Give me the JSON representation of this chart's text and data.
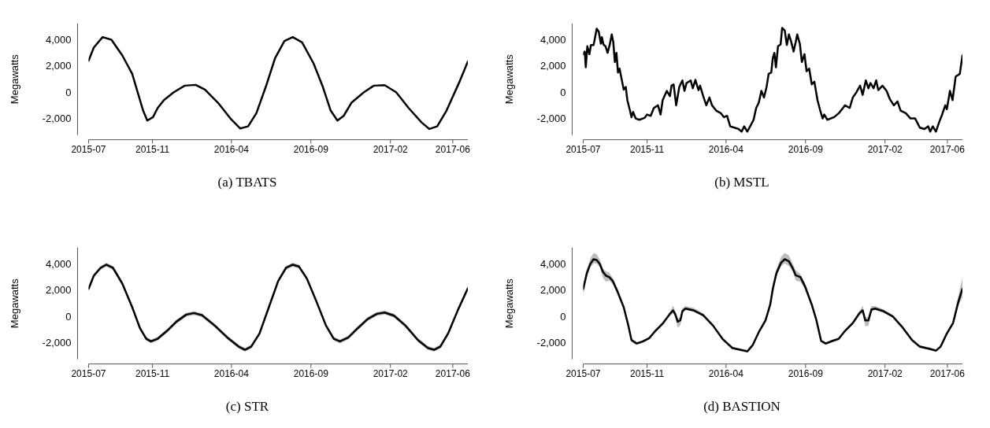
{
  "chart_data": [
    {
      "type": "line",
      "title": "(a) TBATS",
      "ylabel": "Megawatts",
      "marker": "none",
      "line_style": "solid",
      "xlim": [
        "2015-07-01",
        "2017-06-30"
      ],
      "xticks": [
        "2015-07",
        "2015-11",
        "2016-04",
        "2016-09",
        "2017-02",
        "2017-06"
      ],
      "ylim": [
        -3200,
        5300
      ],
      "yticks": [
        {
          "value": -2000,
          "label": "-2,000"
        },
        {
          "value": 0,
          "label": "0"
        },
        {
          "value": 2000,
          "label": "2,000"
        },
        {
          "value": 4000,
          "label": "4,000"
        }
      ],
      "x": [
        "2015-07-01",
        "2015-07-11",
        "2015-07-28",
        "2015-08-14",
        "2015-09-04",
        "2015-09-23",
        "2015-10-05",
        "2015-10-14",
        "2015-10-22",
        "2015-11-02",
        "2015-11-11",
        "2015-11-23",
        "2015-12-12",
        "2016-01-02",
        "2016-01-23",
        "2016-02-10",
        "2016-03-06",
        "2016-03-30",
        "2016-04-18",
        "2016-05-03",
        "2016-05-19",
        "2016-06-06",
        "2016-06-24",
        "2016-07-12",
        "2016-07-28",
        "2016-08-15",
        "2016-09-06",
        "2016-09-24",
        "2016-10-09",
        "2016-10-22",
        "2016-11-03",
        "2016-11-18",
        "2016-12-12",
        "2016-12-31",
        "2017-01-21",
        "2017-02-12",
        "2017-03-08",
        "2017-04-02",
        "2017-04-17",
        "2017-05-02",
        "2017-05-20",
        "2017-06-14",
        "2017-06-30"
      ],
      "series": [
        {
          "color": "#000000",
          "values": [
            2460,
            3460,
            4260,
            4060,
            2860,
            1460,
            -140,
            -1340,
            -2100,
            -1840,
            -1140,
            -540,
            60,
            560,
            620,
            260,
            -740,
            -1940,
            -2700,
            -2540,
            -1540,
            460,
            2660,
            3960,
            4260,
            3860,
            2260,
            460,
            -1340,
            -2100,
            -1740,
            -740,
            60,
            560,
            600,
            60,
            -1140,
            -2240,
            -2740,
            -2540,
            -1340,
            860,
            2400
          ]
        }
      ]
    },
    {
      "type": "line",
      "title": "(b) MSTL",
      "ylabel": "Megawatts",
      "marker": "none",
      "line_style": "solid",
      "xlim": [
        "2015-07-01",
        "2017-06-30"
      ],
      "xticks": [
        "2015-07",
        "2015-11",
        "2016-04",
        "2016-09",
        "2017-02",
        "2017-06"
      ],
      "ylim": [
        -3200,
        5300
      ],
      "yticks": [
        {
          "value": -2000,
          "label": "-2,000"
        },
        {
          "value": 0,
          "label": "0"
        },
        {
          "value": 2000,
          "label": "2,000"
        },
        {
          "value": 4000,
          "label": "4,000"
        }
      ],
      "x": [
        "2015-07-01",
        "2015-07-04",
        "2015-07-06",
        "2015-07-09",
        "2015-07-13",
        "2015-07-16",
        "2015-07-21",
        "2015-07-24",
        "2015-07-27",
        "2015-07-31",
        "2015-08-04",
        "2015-08-06",
        "2015-08-09",
        "2015-08-13",
        "2015-08-17",
        "2015-08-21",
        "2015-08-25",
        "2015-08-28",
        "2015-08-31",
        "2015-09-03",
        "2015-09-06",
        "2015-09-09",
        "2015-09-14",
        "2015-09-17",
        "2015-09-21",
        "2015-09-24",
        "2015-09-29",
        "2015-10-02",
        "2015-10-05",
        "2015-10-10",
        "2015-10-17",
        "2015-10-27",
        "2015-11-01",
        "2015-11-08",
        "2015-11-14",
        "2015-11-22",
        "2015-11-27",
        "2015-12-01",
        "2015-12-09",
        "2015-12-15",
        "2015-12-18",
        "2015-12-22",
        "2015-12-27",
        "2016-01-02",
        "2016-01-08",
        "2016-01-12",
        "2016-01-16",
        "2016-01-24",
        "2016-01-28",
        "2016-02-02",
        "2016-02-08",
        "2016-02-11",
        "2016-02-17",
        "2016-02-23",
        "2016-02-29",
        "2016-03-05",
        "2016-03-13",
        "2016-03-22",
        "2016-03-28",
        "2016-04-03",
        "2016-04-09",
        "2016-04-17",
        "2016-04-25",
        "2016-05-01",
        "2016-05-06",
        "2016-05-12",
        "2016-05-18",
        "2016-05-24",
        "2016-05-29",
        "2016-06-03",
        "2016-06-08",
        "2016-06-13",
        "2016-06-18",
        "2016-06-22",
        "2016-06-27",
        "2016-06-30",
        "2016-07-03",
        "2016-07-06",
        "2016-07-10",
        "2016-07-15",
        "2016-07-18",
        "2016-07-23",
        "2016-07-27",
        "2016-07-31",
        "2016-08-04",
        "2016-08-09",
        "2016-08-13",
        "2016-08-16",
        "2016-08-21",
        "2016-08-25",
        "2016-08-30",
        "2016-09-03",
        "2016-09-08",
        "2016-09-13",
        "2016-09-18",
        "2016-09-24",
        "2016-09-30",
        "2016-10-04",
        "2016-10-07",
        "2016-10-13",
        "2016-10-26",
        "2016-11-04",
        "2016-11-10",
        "2016-11-16",
        "2016-11-25",
        "2016-12-01",
        "2016-12-08",
        "2016-12-15",
        "2016-12-20",
        "2016-12-26",
        "2016-12-31",
        "2017-01-04",
        "2017-01-10",
        "2017-01-15",
        "2017-01-19",
        "2017-01-27",
        "2017-02-04",
        "2017-02-10",
        "2017-02-18",
        "2017-02-25",
        "2017-03-03",
        "2017-03-13",
        "2017-03-22",
        "2017-03-31",
        "2017-04-09",
        "2017-04-18",
        "2017-04-25",
        "2017-04-29",
        "2017-05-04",
        "2017-05-10",
        "2017-05-16",
        "2017-05-21",
        "2017-05-28",
        "2017-05-31",
        "2017-06-06",
        "2017-06-11",
        "2017-06-17",
        "2017-06-25",
        "2017-06-30"
      ],
      "series": [
        {
          "color": "#000000",
          "values": [
            2960,
            3160,
            1960,
            3560,
            2960,
            3660,
            3660,
            4260,
            4900,
            4660,
            3760,
            4260,
            3700,
            3560,
            3060,
            3660,
            4460,
            3860,
            2360,
            3060,
            1560,
            1860,
            860,
            260,
            460,
            -540,
            -1340,
            -1840,
            -1440,
            -1940,
            -2040,
            -1900,
            -1640,
            -1740,
            -1140,
            -940,
            -1640,
            -540,
            160,
            -240,
            560,
            660,
            -940,
            460,
            960,
            160,
            760,
            960,
            360,
            1000,
            220,
            560,
            -240,
            -940,
            -340,
            -940,
            -1340,
            -1540,
            -1840,
            -1740,
            -2540,
            -2640,
            -2740,
            -2940,
            -2540,
            -2940,
            -2500,
            -2040,
            -1140,
            -740,
            160,
            -340,
            460,
            1460,
            1560,
            2660,
            3060,
            1960,
            3560,
            3700,
            4960,
            4760,
            3660,
            4460,
            3960,
            3160,
            3860,
            4460,
            3760,
            2360,
            2960,
            1660,
            1860,
            660,
            860,
            -540,
            -1440,
            -1940,
            -1640,
            -2040,
            -1840,
            -1540,
            -1240,
            -940,
            -1140,
            -340,
            60,
            560,
            -140,
            960,
            360,
            760,
            360,
            960,
            220,
            560,
            160,
            -440,
            -940,
            -640,
            -1340,
            -1540,
            -1940,
            -1940,
            -2640,
            -2740,
            -2540,
            -2940,
            -2540,
            -2940,
            -2240,
            -1740,
            -940,
            -1240,
            160,
            -540,
            1260,
            1460,
            2860
          ]
        }
      ]
    },
    {
      "type": "line",
      "title": "(c) STR",
      "ylabel": "Megawatts",
      "marker": "none",
      "line_style": "solid",
      "xlim": [
        "2015-07-01",
        "2017-06-30"
      ],
      "xticks": [
        "2015-07",
        "2015-11",
        "2016-04",
        "2016-09",
        "2017-02",
        "2017-06"
      ],
      "ylim": [
        -3200,
        5300
      ],
      "yticks": [
        {
          "value": -2000,
          "label": "-2,000"
        },
        {
          "value": 0,
          "label": "0"
        },
        {
          "value": 2000,
          "label": "2,000"
        },
        {
          "value": 4000,
          "label": "4,000"
        }
      ],
      "x": [
        "2015-07-01",
        "2015-07-11",
        "2015-07-24",
        "2015-08-04",
        "2015-08-17",
        "2015-09-04",
        "2015-09-23",
        "2015-10-08",
        "2015-10-20",
        "2015-10-29",
        "2015-11-11",
        "2015-11-29",
        "2015-12-17",
        "2016-01-05",
        "2016-01-20",
        "2016-02-04",
        "2016-02-29",
        "2016-03-24",
        "2016-04-15",
        "2016-04-27",
        "2016-05-09",
        "2016-05-25",
        "2016-06-12",
        "2016-06-30",
        "2016-07-15",
        "2016-07-28",
        "2016-08-09",
        "2016-08-24",
        "2016-09-12",
        "2016-09-30",
        "2016-10-15",
        "2016-10-27",
        "2016-11-12",
        "2016-11-30",
        "2016-12-19",
        "2017-01-06",
        "2017-01-21",
        "2017-02-08",
        "2017-03-02",
        "2017-03-26",
        "2017-04-14",
        "2017-04-26",
        "2017-05-08",
        "2017-05-23",
        "2017-06-11",
        "2017-06-30"
      ],
      "series": [
        {
          "color": "#000000",
          "values": [
            2160,
            3160,
            3760,
            4000,
            3760,
            2560,
            760,
            -840,
            -1640,
            -1840,
            -1640,
            -1040,
            -340,
            200,
            320,
            160,
            -640,
            -1540,
            -2240,
            -2480,
            -2240,
            -1240,
            760,
            2760,
            3760,
            4000,
            3860,
            2960,
            1160,
            -640,
            -1640,
            -1840,
            -1540,
            -840,
            -140,
            260,
            360,
            120,
            -640,
            -1740,
            -2340,
            -2480,
            -2240,
            -1240,
            560,
            2200
          ],
          "lower": [
            2010,
            3010,
            3610,
            3850,
            3610,
            2410,
            610,
            -990,
            -1790,
            -1990,
            -1790,
            -1190,
            -490,
            50,
            170,
            10,
            -790,
            -1690,
            -2390,
            -2630,
            -2390,
            -1390,
            610,
            2610,
            3610,
            3850,
            3710,
            2810,
            1010,
            -790,
            -1790,
            -1990,
            -1690,
            -990,
            -290,
            110,
            210,
            -30,
            -790,
            -1890,
            -2490,
            -2630,
            -2390,
            -1390,
            410,
            2050
          ],
          "upper": [
            2310,
            3310,
            3910,
            4150,
            3910,
            2710,
            910,
            -690,
            -1490,
            -1690,
            -1490,
            -890,
            -190,
            350,
            470,
            310,
            -490,
            -1390,
            -2090,
            -2330,
            -2090,
            -1090,
            910,
            2910,
            3910,
            4150,
            4010,
            3110,
            1310,
            -490,
            -1490,
            -1690,
            -1390,
            -690,
            10,
            410,
            510,
            270,
            -490,
            -1590,
            -2190,
            -2330,
            -2090,
            -1090,
            710,
            2350
          ]
        }
      ]
    },
    {
      "type": "line",
      "title": "(d) BASTION",
      "ylabel": "Megawatts",
      "marker": "none",
      "line_style": "solid",
      "xlim": [
        "2015-07-01",
        "2017-06-30"
      ],
      "xticks": [
        "2015-07",
        "2015-11",
        "2016-04",
        "2016-09",
        "2017-02",
        "2017-06"
      ],
      "ylim": [
        -3200,
        5300
      ],
      "yticks": [
        {
          "value": -2000,
          "label": "-2,000"
        },
        {
          "value": 0,
          "label": "0"
        },
        {
          "value": 2000,
          "label": "2,000"
        },
        {
          "value": 4000,
          "label": "4,000"
        }
      ],
      "x": [
        "2015-07-01",
        "2015-07-08",
        "2015-07-15",
        "2015-07-21",
        "2015-07-27",
        "2015-08-02",
        "2015-08-08",
        "2015-08-14",
        "2015-08-20",
        "2015-08-27",
        "2015-09-05",
        "2015-09-17",
        "2015-09-26",
        "2015-10-02",
        "2015-10-12",
        "2015-10-24",
        "2015-11-05",
        "2015-11-17",
        "2015-12-02",
        "2015-12-15",
        "2015-12-21",
        "2015-12-25",
        "2015-12-30",
        "2016-01-04",
        "2016-01-08",
        "2016-01-14",
        "2016-01-30",
        "2016-02-17",
        "2016-03-07",
        "2016-03-25",
        "2016-04-13",
        "2016-04-28",
        "2016-05-12",
        "2016-05-22",
        "2016-06-03",
        "2016-06-16",
        "2016-06-25",
        "2016-06-30",
        "2016-07-07",
        "2016-07-16",
        "2016-07-23",
        "2016-07-31",
        "2016-08-07",
        "2016-08-13",
        "2016-08-22",
        "2016-08-31",
        "2016-09-13",
        "2016-09-22",
        "2016-10-01",
        "2016-10-10",
        "2016-10-23",
        "2016-11-04",
        "2016-11-16",
        "2016-12-01",
        "2016-12-14",
        "2016-12-20",
        "2016-12-25",
        "2016-12-31",
        "2017-01-06",
        "2017-01-13",
        "2017-01-29",
        "2017-02-16",
        "2017-03-06",
        "2017-03-25",
        "2017-04-09",
        "2017-04-27",
        "2017-05-10",
        "2017-05-19",
        "2017-05-31",
        "2017-06-12",
        "2017-06-22",
        "2017-06-30"
      ],
      "series": [
        {
          "color": "#000000",
          "values": [
            2160,
            3360,
            4080,
            4420,
            4360,
            4060,
            3460,
            3160,
            3060,
            2760,
            1960,
            760,
            -640,
            -1740,
            -2000,
            -1840,
            -1600,
            -1040,
            -440,
            260,
            520,
            260,
            -340,
            -240,
            460,
            660,
            520,
            160,
            -640,
            -1640,
            -2340,
            -2480,
            -2600,
            -2140,
            -1140,
            -240,
            960,
            2160,
            3360,
            4160,
            4420,
            4260,
            3760,
            3200,
            3060,
            2360,
            960,
            -240,
            -1800,
            -2000,
            -1800,
            -1640,
            -1040,
            -440,
            320,
            520,
            -240,
            -240,
            600,
            660,
            460,
            60,
            -740,
            -1740,
            -2240,
            -2400,
            -2540,
            -2240,
            -1240,
            -440,
            1160,
            2160
          ],
          "lower": [
            1600,
            3000,
            3800,
            4100,
            4100,
            3800,
            3000,
            2700,
            2800,
            2500,
            1800,
            600,
            -800,
            -1900,
            -2100,
            -1950,
            -1700,
            -1150,
            -550,
            100,
            300,
            0,
            -800,
            -600,
            300,
            550,
            400,
            50,
            -750,
            -1750,
            -2450,
            -2580,
            -2700,
            -2250,
            -1250,
            -400,
            800,
            1900,
            3100,
            3900,
            4100,
            3900,
            3500,
            2800,
            2700,
            2100,
            800,
            -400,
            -1950,
            -2100,
            -1900,
            -1750,
            -1150,
            -550,
            150,
            300,
            -700,
            -650,
            400,
            550,
            350,
            -50,
            -850,
            -1850,
            -2350,
            -2500,
            -2650,
            -2350,
            -1350,
            -600,
            900,
            1500
          ],
          "upper": [
            2400,
            3700,
            4500,
            4900,
            4800,
            4400,
            3700,
            3500,
            3400,
            3000,
            2200,
            900,
            -500,
            -1600,
            -1900,
            -1750,
            -1500,
            -950,
            -300,
            400,
            900,
            500,
            -100,
            0,
            700,
            850,
            700,
            300,
            -550,
            -1550,
            -2250,
            -2400,
            -2500,
            -2050,
            -1050,
            -100,
            1200,
            2600,
            3700,
            4600,
            4900,
            4700,
            4100,
            3600,
            3300,
            2600,
            1100,
            -100,
            -1700,
            -1900,
            -1700,
            -1550,
            -950,
            -300,
            500,
            900,
            0,
            0,
            850,
            850,
            600,
            200,
            -650,
            -1650,
            -2150,
            -2300,
            -2450,
            -2150,
            -1150,
            -300,
            1600,
            3000
          ]
        }
      ]
    }
  ]
}
